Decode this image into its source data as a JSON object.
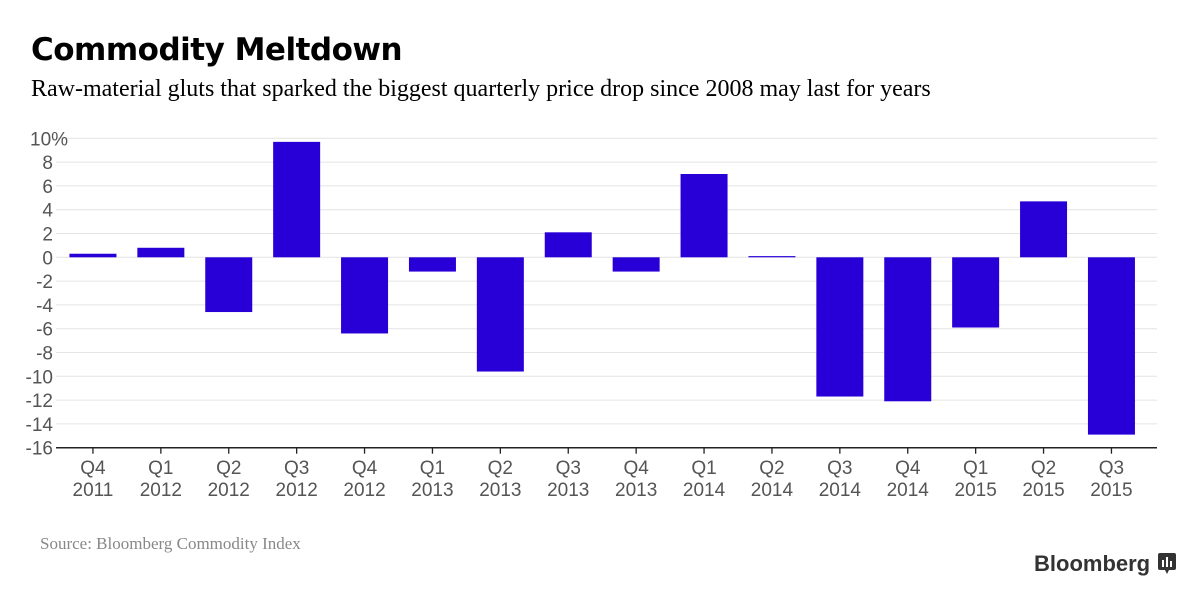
{
  "title": "Commodity Meltdown",
  "subtitle": "Raw-material gluts that sparked the biggest quarterly price drop since 2008 may last for years",
  "source": "Source: Bloomberg Commodity Index",
  "logo": "Bloomberg",
  "chart_data": {
    "type": "bar",
    "title": "Commodity Meltdown",
    "categories": [
      [
        "Q4",
        "2011"
      ],
      [
        "Q1",
        "2012"
      ],
      [
        "Q2",
        "2012"
      ],
      [
        "Q3",
        "2012"
      ],
      [
        "Q4",
        "2012"
      ],
      [
        "Q1",
        "2013"
      ],
      [
        "Q2",
        "2013"
      ],
      [
        "Q3",
        "2013"
      ],
      [
        "Q4",
        "2013"
      ],
      [
        "Q1",
        "2014"
      ],
      [
        "Q2",
        "2014"
      ],
      [
        "Q3",
        "2014"
      ],
      [
        "Q4",
        "2014"
      ],
      [
        "Q1",
        "2015"
      ],
      [
        "Q2",
        "2015"
      ],
      [
        "Q3",
        "2015"
      ]
    ],
    "values": [
      0.3,
      0.8,
      -4.6,
      9.7,
      -6.4,
      -1.2,
      -9.6,
      2.1,
      -1.2,
      7.0,
      0.1,
      -11.7,
      -12.1,
      -5.9,
      4.7,
      -14.9
    ],
    "ylim": [
      -16,
      10
    ],
    "yticks": [
      "-16",
      "-14",
      "-12",
      "-10",
      "-8",
      "-6",
      "-4",
      "-2",
      "0",
      "2",
      "4",
      "6",
      "8",
      "10%"
    ],
    "ytick_values": [
      -16,
      -14,
      -12,
      -10,
      -8,
      -6,
      -4,
      -2,
      0,
      2,
      4,
      6,
      8,
      10
    ],
    "grid": true,
    "color": "#2800d7"
  }
}
